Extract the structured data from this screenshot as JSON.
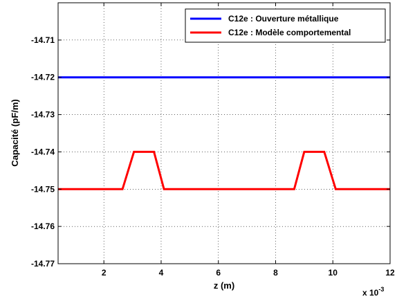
{
  "chart_data": {
    "type": "line",
    "title": "",
    "xlabel": "z (m)",
    "ylabel": "Capacité (pF/m)",
    "x_multiplier_label": "x 10",
    "x_multiplier_exponent": "-3",
    "xlim": [
      0.4,
      12
    ],
    "ylim": [
      -14.77,
      -14.7
    ],
    "xticks": [
      2,
      4,
      6,
      8,
      10,
      12
    ],
    "xtick_labels": [
      "2",
      "4",
      "6",
      "8",
      "10",
      "12"
    ],
    "yticks": [
      -14.77,
      -14.76,
      -14.75,
      -14.74,
      -14.73,
      -14.72,
      -14.71
    ],
    "ytick_labels": [
      "-14.77",
      "-14.76",
      "-14.75",
      "-14.74",
      "-14.73",
      "-14.72",
      "-14.71"
    ],
    "grid": true,
    "legend_position": "top-right",
    "series": [
      {
        "name": "C12e : Ouverture métallique",
        "color": "#0000ff",
        "x": [
          0.4,
          12
        ],
        "y": [
          -14.72,
          -14.72
        ]
      },
      {
        "name": "C12e : Modèle comportemental",
        "color": "#ff0000",
        "x": [
          0.4,
          2.65,
          3.05,
          3.75,
          4.1,
          8.65,
          9.0,
          9.7,
          10.1,
          12
        ],
        "y": [
          -14.75,
          -14.75,
          -14.74,
          -14.74,
          -14.75,
          -14.75,
          -14.74,
          -14.74,
          -14.75,
          -14.75
        ]
      }
    ]
  }
}
